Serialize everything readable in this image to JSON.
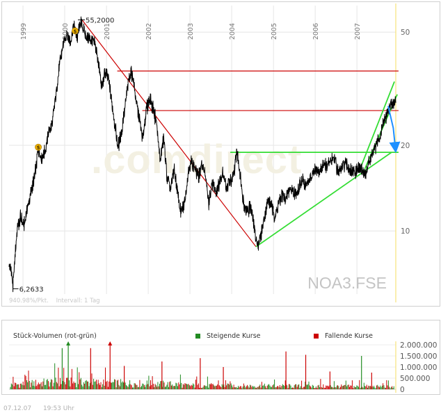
{
  "chart_data": [
    {
      "type": "line",
      "title": "",
      "symbol": "NOA3.FSE",
      "watermark": ".comdirect",
      "y_scale": "log",
      "ylim": [
        6,
        62
      ],
      "x_range": [
        "1998-09-01",
        "2007-12-07"
      ],
      "x_tick_labels": [
        "1999",
        "2000",
        "2001",
        "2002",
        "2003",
        "2004",
        "2005",
        "2006",
        "2007"
      ],
      "y_tick_labels": [
        "50",
        "20",
        "10"
      ],
      "y_tick_values": [
        50,
        20,
        10
      ],
      "grid": true,
      "info_text": "940.98%/Pkt.    Intervall: 1 Tag",
      "annotations": {
        "max_label": "55,2000",
        "max_value": 55.2,
        "max_date": "2000-06-01",
        "min_label": "6,2633",
        "min_value": 6.2633,
        "min_date": "1998-10-05"
      },
      "dividend_markers": [
        {
          "date": "1999-05-15",
          "value": 19.7,
          "label": "$"
        },
        {
          "date": "2000-04-01",
          "value": 50.5,
          "label": "$"
        }
      ],
      "series": [
        {
          "name": "",
          "color": "#000000",
          "x": [
            "1998-09-01",
            "1998-09-20",
            "1998-10-05",
            "1998-10-25",
            "1998-11-15",
            "1998-12-10",
            "1999-01-10",
            "1999-02-10",
            "1999-03-15",
            "1999-04-15",
            "1999-05-15",
            "1999-06-15",
            "1999-07-15",
            "1999-08-15",
            "1999-09-15",
            "1999-10-15",
            "1999-11-15",
            "1999-12-15",
            "2000-01-20",
            "2000-02-20",
            "2000-03-20",
            "2000-04-20",
            "2000-05-20",
            "2000-06-15",
            "2000-07-15",
            "2000-08-20",
            "2000-09-20",
            "2000-10-20",
            "2000-11-20",
            "2000-12-20",
            "2001-01-20",
            "2001-02-15",
            "2001-03-15",
            "2001-04-10",
            "2001-05-15",
            "2001-06-15",
            "2001-07-15",
            "2001-08-15",
            "2001-09-15",
            "2001-10-15",
            "2001-11-15",
            "2001-12-15",
            "2002-01-15",
            "2002-02-15",
            "2002-03-15",
            "2002-04-15",
            "2002-05-15",
            "2002-06-15",
            "2002-07-15",
            "2002-08-15",
            "2002-09-15",
            "2002-10-15",
            "2002-11-15",
            "2002-12-15",
            "2003-01-15",
            "2003-02-15",
            "2003-03-15",
            "2003-04-15",
            "2003-05-15",
            "2003-06-15",
            "2003-07-15",
            "2003-08-15",
            "2003-09-15",
            "2003-10-15",
            "2003-11-15",
            "2003-12-15",
            "2004-01-15",
            "2004-02-15",
            "2004-03-15",
            "2004-04-15",
            "2004-05-15",
            "2004-06-15",
            "2004-07-15",
            "2004-08-15",
            "2004-09-15",
            "2004-10-15",
            "2004-11-15",
            "2004-12-15",
            "2005-01-15",
            "2005-02-15",
            "2005-03-15",
            "2005-04-15",
            "2005-05-15",
            "2005-06-15",
            "2005-07-15",
            "2005-08-15",
            "2005-09-15",
            "2005-10-15",
            "2005-11-15",
            "2005-12-15",
            "2006-01-15",
            "2006-02-15",
            "2006-03-15",
            "2006-04-15",
            "2006-05-15",
            "2006-06-15",
            "2006-07-15",
            "2006-08-15",
            "2006-09-15",
            "2006-10-15",
            "2006-11-15",
            "2006-12-15",
            "2007-01-15",
            "2007-02-15",
            "2007-03-15",
            "2007-04-15",
            "2007-05-15",
            "2007-06-15",
            "2007-07-15",
            "2007-08-15",
            "2007-09-15",
            "2007-10-15",
            "2007-11-15",
            "2007-12-07"
          ],
          "values": [
            7.6,
            7.3,
            6.3,
            8.4,
            10.3,
            11.2,
            10.4,
            12.1,
            13.8,
            15.6,
            19.4,
            17.9,
            19.3,
            22.5,
            23.8,
            30.1,
            37.8,
            44.1,
            50.2,
            46.4,
            52.7,
            47.8,
            54.8,
            50.6,
            48.1,
            47.2,
            45.2,
            39.8,
            31.6,
            36.4,
            33.9,
            28.3,
            23.8,
            19.6,
            22.5,
            27.8,
            34.6,
            36.1,
            28.9,
            24.9,
            21.2,
            26.6,
            29.1,
            26.9,
            23.7,
            17.6,
            21.2,
            15.3,
            13.9,
            16.6,
            13.5,
            11.5,
            12.6,
            16.1,
            17.6,
            16.5,
            15.4,
            17.3,
            15.8,
            12.4,
            14.9,
            13.8,
            14.7,
            16.3,
            14.1,
            14.9,
            15.3,
            19.2,
            15.8,
            12.6,
            11.7,
            12.2,
            10.4,
            8.8,
            9.8,
            11.2,
            12.8,
            12.2,
            11.2,
            12.5,
            13.2,
            12.9,
            13.8,
            14.1,
            13.4,
            14.4,
            14.9,
            14.5,
            15.2,
            15.8,
            16.5,
            16.1,
            17.3,
            16.8,
            17.7,
            18.4,
            16.1,
            16.4,
            17.2,
            16.8,
            16.1,
            15.9,
            16.6,
            16.3,
            15.8,
            17.3,
            18.6,
            19.7,
            21.2,
            23.8,
            25.4,
            27.2,
            28.9,
            28.4
          ]
        }
      ],
      "trendlines": [
        {
          "color": "#cc0000",
          "points": [
            [
              "2000-06-01",
              55.2
            ],
            [
              "2004-08-01",
              8.8
            ]
          ]
        },
        {
          "color": "#cc0000",
          "points": [
            [
              "2001-04-05",
              36.5
            ],
            [
              "2007-12-31",
              36.5
            ]
          ]
        },
        {
          "color": "#cc0000",
          "points": [
            [
              "2001-11-10",
              26.5
            ],
            [
              "2007-12-31",
              26.5
            ]
          ]
        },
        {
          "color": "#33dd33",
          "points": [
            [
              "2004-08-01",
              8.8
            ],
            [
              "2007-10-31",
              18.9
            ]
          ]
        },
        {
          "color": "#33dd33",
          "points": [
            [
              "2003-12-20",
              18.9
            ],
            [
              "2007-12-31",
              18.9
            ]
          ]
        },
        {
          "color": "#33dd33",
          "points": [
            [
              "2007-01-15",
              16.0
            ],
            [
              "2007-11-25",
              33.5
            ]
          ]
        },
        {
          "color": "#33dd33",
          "points": [
            [
              "2007-03-10",
              16.5
            ],
            [
              "2007-12-20",
              30.2
            ]
          ]
        }
      ],
      "projection_arrows": [
        {
          "color": "#1e90ff",
          "points": [
            [
              "2007-10-01",
              27.5
            ],
            [
              "2007-11-15",
              23.0
            ],
            [
              "2007-12-05",
              19.2
            ]
          ]
        }
      ]
    },
    {
      "type": "bar",
      "title": "Stück-Volumen (rot-grün)",
      "legend": [
        {
          "name": "Steigende Kurse",
          "color": "#228b22"
        },
        {
          "name": "Fallende Kurse",
          "color": "#cc0000"
        }
      ],
      "y_tick_labels": [
        "2.000.000",
        "1.500.000",
        "1.000.000",
        "500.000",
        "0"
      ],
      "y_tick_values": [
        2000000,
        1500000,
        1000000,
        500000,
        0
      ],
      "ylim": [
        0,
        2000000
      ],
      "spikes": [
        {
          "date": "1999-12-10",
          "value": 1850000,
          "color": "#228b22"
        },
        {
          "date": "2000-02-01",
          "value": 2150000,
          "color": "#228b22"
        },
        {
          "date": "2000-08-15",
          "value": 1850000,
          "color": "#cc0000"
        },
        {
          "date": "2001-02-01",
          "value": 2150000,
          "color": "#cc0000"
        },
        {
          "date": "2001-06-05",
          "value": 1050000,
          "color": "#cc0000"
        },
        {
          "date": "2002-05-01",
          "value": 1250000,
          "color": "#cc0000"
        },
        {
          "date": "2003-04-01",
          "value": 1400000,
          "color": "#cc0000"
        },
        {
          "date": "2003-10-20",
          "value": 1000000,
          "color": "#cc0000"
        },
        {
          "date": "2005-04-20",
          "value": 1700000,
          "color": "#cc0000"
        },
        {
          "date": "2005-10-10",
          "value": 1550000,
          "color": "#cc0000"
        },
        {
          "date": "2006-05-10",
          "value": 800000,
          "color": "#cc0000"
        },
        {
          "date": "2007-02-10",
          "value": 1500000,
          "color": "#228b22"
        },
        {
          "date": "2007-05-10",
          "value": 750000,
          "color": "#cc0000"
        }
      ]
    }
  ],
  "footer": {
    "date": "07.12.07",
    "time": "19:53 Uhr"
  }
}
